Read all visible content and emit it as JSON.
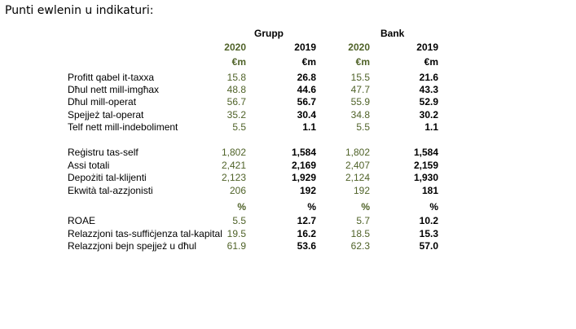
{
  "title": "Punti ewlenin u indikaturi:",
  "groups": {
    "grupp": "Grupp",
    "bank": "Bank"
  },
  "header_years": [
    "2020",
    "2019",
    "2020",
    "2019"
  ],
  "unit_row_1": [
    "€m",
    "€m",
    "€m",
    "€m"
  ],
  "section1": [
    {
      "label": "Profitt qabel it-taxxa",
      "values": [
        "15.8",
        "26.8",
        "15.5",
        "21.6"
      ]
    },
    {
      "label": "Dħul nett mill-imgħax",
      "values": [
        "48.8",
        "44.6",
        "47.7",
        "43.3"
      ]
    },
    {
      "label": "Dħul mill-operat",
      "values": [
        "56.7",
        "56.7",
        "55.9",
        "52.9"
      ]
    },
    {
      "label": "Spejjeż tal-operat",
      "values": [
        "35.2",
        "30.4",
        "34.8",
        "30.2"
      ]
    },
    {
      "label": "Telf nett mill-indeboliment",
      "values": [
        "5.5",
        "1.1",
        "5.5",
        "1.1"
      ]
    }
  ],
  "section2": [
    {
      "label": "Reġistru tas-self",
      "values": [
        "1,802",
        "1,584",
        "1,802",
        "1,584"
      ]
    },
    {
      "label": "Assi totali",
      "values": [
        "2,421",
        "2,169",
        "2,407",
        "2,159"
      ]
    },
    {
      "label": "Depożiti tal-klijenti",
      "values": [
        "2,123",
        "1,929",
        "2,124",
        "1,930"
      ]
    },
    {
      "label": "Ekwità tal-azzjonisti",
      "values": [
        "206",
        "192",
        "192",
        "181"
      ]
    }
  ],
  "unit_row_2": [
    "%",
    "%",
    "%",
    "%"
  ],
  "section3": [
    {
      "label": "ROAE",
      "values": [
        "5.5",
        "12.7",
        "5.7",
        "10.2"
      ]
    },
    {
      "label": "Relazzjoni tas-suffiċjenza tal-kapital",
      "values": [
        "19.5",
        "16.2",
        "18.5",
        "15.3"
      ]
    },
    {
      "label": "Relazzjoni bejn spejjeż u dħul",
      "values": [
        "61.9",
        "53.6",
        "62.3",
        "57.0"
      ]
    }
  ]
}
